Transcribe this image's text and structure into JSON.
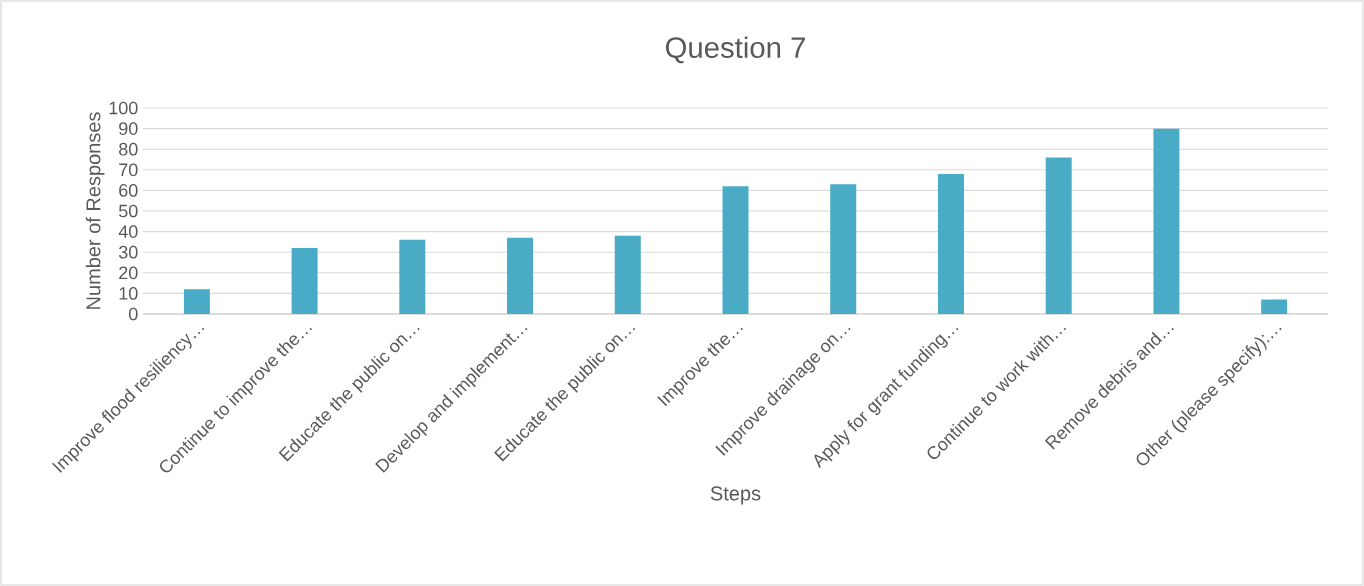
{
  "chart_data": {
    "type": "bar",
    "title": "Question 7",
    "xlabel": "Steps",
    "ylabel": "Number of Responses",
    "categories": [
      "Improve flood resiliency…",
      "Continue to improve the…",
      "Educate the public on…",
      "Develop and implement…",
      "Educate the public on…",
      "Improve the…",
      "Improve drainage on…",
      "Apply for grant funding…",
      "Continue to work with…",
      "Remove debris and…",
      "Other (please specify):…"
    ],
    "values": [
      12,
      32,
      36,
      37,
      38,
      62,
      63,
      68,
      76,
      90,
      7
    ],
    "color": "#4aabc6",
    "ylim": [
      0,
      100
    ],
    "yticks": [
      0,
      10,
      20,
      30,
      40,
      50,
      60,
      70,
      80,
      90,
      100
    ],
    "grid": "y"
  }
}
